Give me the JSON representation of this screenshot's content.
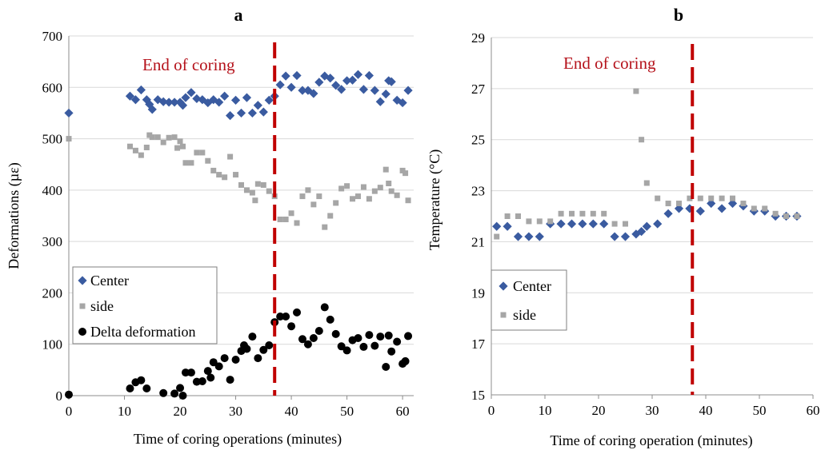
{
  "colors": {
    "center": "#3a5ba0",
    "side": "#a6a6a6",
    "delta": "#000000",
    "end_line": "#c00000",
    "annotation": "#b5121b",
    "grid": "#d9d9d9",
    "axis": "#8c8c8c"
  },
  "chart_data": [
    {
      "panel": "a",
      "type": "scatter",
      "xlabel": "Time of coring operations (minutes)",
      "ylabel": "Deformations (µε)",
      "xlim": [
        0,
        62
      ],
      "ylim": [
        0,
        700
      ],
      "xticks": [
        0,
        10,
        20,
        30,
        40,
        50,
        60
      ],
      "yticks": [
        0,
        100,
        200,
        300,
        400,
        500,
        600,
        700
      ],
      "grid": "horizontal",
      "legend": {
        "placement": "left-middle",
        "entries": [
          "Center",
          "side",
          "Delta deformation"
        ]
      },
      "annotation": {
        "text": "End of coring",
        "x": 37
      },
      "series": [
        {
          "name": "Center",
          "marker": "diamond",
          "points": [
            [
              0,
              550
            ],
            [
              11,
              583
            ],
            [
              12,
              576
            ],
            [
              13,
              595
            ],
            [
              14,
              576
            ],
            [
              14.5,
              567
            ],
            [
              15,
              557
            ],
            [
              16,
              576
            ],
            [
              17,
              572
            ],
            [
              18,
              571
            ],
            [
              19,
              571
            ],
            [
              20,
              571
            ],
            [
              20.5,
              565
            ],
            [
              21,
              580
            ],
            [
              22,
              590
            ],
            [
              23,
              578
            ],
            [
              24,
              576
            ],
            [
              25,
              570
            ],
            [
              26,
              576
            ],
            [
              27,
              571
            ],
            [
              28,
              583
            ],
            [
              29,
              545
            ],
            [
              30,
              575
            ],
            [
              31,
              550
            ],
            [
              32,
              580
            ],
            [
              33,
              550
            ],
            [
              34,
              565
            ],
            [
              35,
              552
            ],
            [
              36,
              575
            ],
            [
              37,
              583
            ],
            [
              38,
              605
            ],
            [
              39,
              622
            ],
            [
              40,
              600
            ],
            [
              41,
              623
            ],
            [
              42,
              594
            ],
            [
              43,
              594
            ],
            [
              44,
              588
            ],
            [
              45,
              610
            ],
            [
              46,
              622
            ],
            [
              47,
              618
            ],
            [
              48,
              604
            ],
            [
              49,
              596
            ],
            [
              50,
              613
            ],
            [
              51,
              614
            ],
            [
              52,
              625
            ],
            [
              53,
              596
            ],
            [
              54,
              623
            ],
            [
              55,
              594
            ],
            [
              56,
              572
            ],
            [
              57,
              587
            ],
            [
              57.5,
              613
            ],
            [
              58,
              611
            ],
            [
              59,
              575
            ],
            [
              60,
              570
            ],
            [
              61,
              594
            ]
          ]
        },
        {
          "name": "side",
          "marker": "square",
          "points": [
            [
              0,
              500
            ],
            [
              11,
              485
            ],
            [
              12,
              477
            ],
            [
              13,
              468
            ],
            [
              14,
              483
            ],
            [
              14.5,
              507
            ],
            [
              15,
              503
            ],
            [
              16,
              503
            ],
            [
              17,
              493
            ],
            [
              18,
              502
            ],
            [
              19,
              503
            ],
            [
              19.5,
              482
            ],
            [
              20,
              495
            ],
            [
              20.5,
              485
            ],
            [
              21,
              453
            ],
            [
              22,
              453
            ],
            [
              23,
              473
            ],
            [
              24,
              473
            ],
            [
              25,
              457
            ],
            [
              26,
              438
            ],
            [
              27,
              430
            ],
            [
              28,
              425
            ],
            [
              29,
              465
            ],
            [
              30,
              430
            ],
            [
              31,
              410
            ],
            [
              32,
              400
            ],
            [
              33,
              395
            ],
            [
              33.5,
              380
            ],
            [
              34,
              412
            ],
            [
              35,
              410
            ],
            [
              36,
              398
            ],
            [
              37,
              388
            ],
            [
              38,
              343
            ],
            [
              39,
              343
            ],
            [
              40,
              355
            ],
            [
              41,
              336
            ],
            [
              42,
              388
            ],
            [
              43,
              400
            ],
            [
              44,
              372
            ],
            [
              45,
              388
            ],
            [
              46,
              328
            ],
            [
              47,
              350
            ],
            [
              48,
              375
            ],
            [
              49,
              403
            ],
            [
              50,
              408
            ],
            [
              51,
              383
            ],
            [
              52,
              388
            ],
            [
              53,
              406
            ],
            [
              54,
              383
            ],
            [
              55,
              398
            ],
            [
              56,
              405
            ],
            [
              57,
              440
            ],
            [
              57.5,
              413
            ],
            [
              58,
              398
            ],
            [
              59,
              390
            ],
            [
              60,
              438
            ],
            [
              60.5,
              433
            ],
            [
              61,
              380
            ]
          ]
        },
        {
          "name": "Delta deformation",
          "marker": "circle",
          "points": [
            [
              0,
              2
            ],
            [
              11,
              14
            ],
            [
              12,
              26
            ],
            [
              13,
              30
            ],
            [
              14,
              14
            ],
            [
              17,
              5
            ],
            [
              19,
              4
            ],
            [
              20,
              15
            ],
            [
              20.5,
              0
            ],
            [
              21,
              45
            ],
            [
              22,
              45
            ],
            [
              23,
              27
            ],
            [
              24,
              28
            ],
            [
              25,
              48
            ],
            [
              25.5,
              35
            ],
            [
              26,
              65
            ],
            [
              27,
              57
            ],
            [
              28,
              73
            ],
            [
              29,
              31
            ],
            [
              30,
              70
            ],
            [
              31,
              87
            ],
            [
              31.5,
              98
            ],
            [
              32,
              91
            ],
            [
              33,
              115
            ],
            [
              34,
              73
            ],
            [
              35,
              89
            ],
            [
              36,
              98
            ],
            [
              37,
              143
            ],
            [
              38,
              154
            ],
            [
              39,
              154
            ],
            [
              40,
              135
            ],
            [
              41,
              162
            ],
            [
              42,
              110
            ],
            [
              43,
              100
            ],
            [
              44,
              112
            ],
            [
              45,
              126
            ],
            [
              46,
              172
            ],
            [
              47,
              148
            ],
            [
              48,
              120
            ],
            [
              49,
              96
            ],
            [
              50,
              88
            ],
            [
              51,
              108
            ],
            [
              52,
              112
            ],
            [
              53,
              95
            ],
            [
              54,
              118
            ],
            [
              55,
              97
            ],
            [
              56,
              115
            ],
            [
              57,
              56
            ],
            [
              57.5,
              117
            ],
            [
              58,
              86
            ],
            [
              59,
              105
            ],
            [
              60,
              62
            ],
            [
              60.5,
              67
            ],
            [
              61,
              116
            ]
          ]
        }
      ]
    },
    {
      "panel": "b",
      "type": "scatter",
      "xlabel": "Time of coring operation (minutes)",
      "ylabel": "Temperature (°C)",
      "xlim": [
        0,
        60
      ],
      "ylim": [
        15,
        29
      ],
      "xticks": [
        0,
        10,
        20,
        30,
        40,
        50,
        60
      ],
      "yticks": [
        15,
        17,
        19,
        21,
        23,
        25,
        27,
        29
      ],
      "grid": "horizontal",
      "legend": {
        "placement": "left-middle",
        "entries": [
          "Center",
          "side"
        ]
      },
      "annotation": {
        "text": "End of coring",
        "x": 37.5
      },
      "series": [
        {
          "name": "Center",
          "marker": "diamond",
          "points": [
            [
              1,
              21.6
            ],
            [
              3,
              21.6
            ],
            [
              5,
              21.2
            ],
            [
              7,
              21.2
            ],
            [
              9,
              21.2
            ],
            [
              11,
              21.7
            ],
            [
              13,
              21.7
            ],
            [
              15,
              21.7
            ],
            [
              17,
              21.7
            ],
            [
              19,
              21.7
            ],
            [
              21,
              21.7
            ],
            [
              23,
              21.2
            ],
            [
              25,
              21.2
            ],
            [
              27,
              21.3
            ],
            [
              28,
              21.4
            ],
            [
              29,
              21.6
            ],
            [
              31,
              21.7
            ],
            [
              33,
              22.1
            ],
            [
              35,
              22.3
            ],
            [
              37,
              22.3
            ],
            [
              39,
              22.2
            ],
            [
              41,
              22.5
            ],
            [
              43,
              22.3
            ],
            [
              45,
              22.5
            ],
            [
              47,
              22.4
            ],
            [
              49,
              22.2
            ],
            [
              51,
              22.2
            ],
            [
              53,
              22.0
            ],
            [
              55,
              22.0
            ],
            [
              57,
              22.0
            ]
          ]
        },
        {
          "name": "side",
          "marker": "square",
          "points": [
            [
              1,
              21.2
            ],
            [
              3,
              22.0
            ],
            [
              5,
              22.0
            ],
            [
              7,
              21.8
            ],
            [
              9,
              21.8
            ],
            [
              11,
              21.8
            ],
            [
              13,
              22.1
            ],
            [
              15,
              22.1
            ],
            [
              17,
              22.1
            ],
            [
              19,
              22.1
            ],
            [
              21,
              22.1
            ],
            [
              23,
              21.7
            ],
            [
              25,
              21.7
            ],
            [
              27,
              26.9
            ],
            [
              28,
              25.0
            ],
            [
              29,
              23.3
            ],
            [
              31,
              22.7
            ],
            [
              33,
              22.5
            ],
            [
              35,
              22.5
            ],
            [
              37,
              22.7
            ],
            [
              39,
              22.7
            ],
            [
              41,
              22.7
            ],
            [
              43,
              22.7
            ],
            [
              45,
              22.7
            ],
            [
              47,
              22.5
            ],
            [
              49,
              22.3
            ],
            [
              51,
              22.3
            ],
            [
              53,
              22.1
            ],
            [
              55,
              22.0
            ],
            [
              57,
              22.0
            ]
          ]
        }
      ]
    }
  ]
}
